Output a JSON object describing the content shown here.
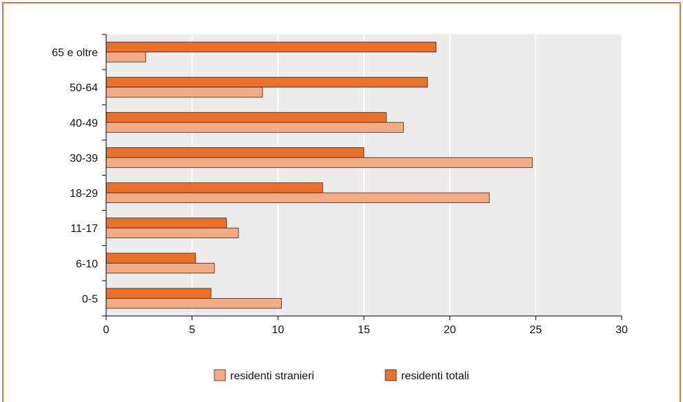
{
  "chart_data": {
    "type": "bar",
    "orientation": "horizontal",
    "categories": [
      "0-5",
      "6-10",
      "11-17",
      "18-29",
      "30-39",
      "40-49",
      "50-64",
      "65 e oltre"
    ],
    "series": [
      {
        "name": "residenti totali",
        "values": [
          6.1,
          5.2,
          7.0,
          12.6,
          15.0,
          16.3,
          18.7,
          19.2
        ],
        "color": "#e8712c"
      },
      {
        "name": "residenti stranieri",
        "values": [
          10.2,
          6.3,
          7.7,
          22.3,
          24.8,
          17.3,
          9.1,
          2.3
        ],
        "color": "#f2ab85"
      }
    ],
    "xlim": [
      0,
      30
    ],
    "xticks": [
      0,
      5,
      10,
      15,
      20,
      25,
      30
    ],
    "grid": true,
    "legend": {
      "position": "bottom",
      "order": [
        "residenti stranieri",
        "residenti totali"
      ]
    },
    "colors": {
      "plot_background": "#ececec",
      "gridline": "#ffffff",
      "frame": "#e8772e",
      "bar_outline": "#3a2418"
    }
  }
}
